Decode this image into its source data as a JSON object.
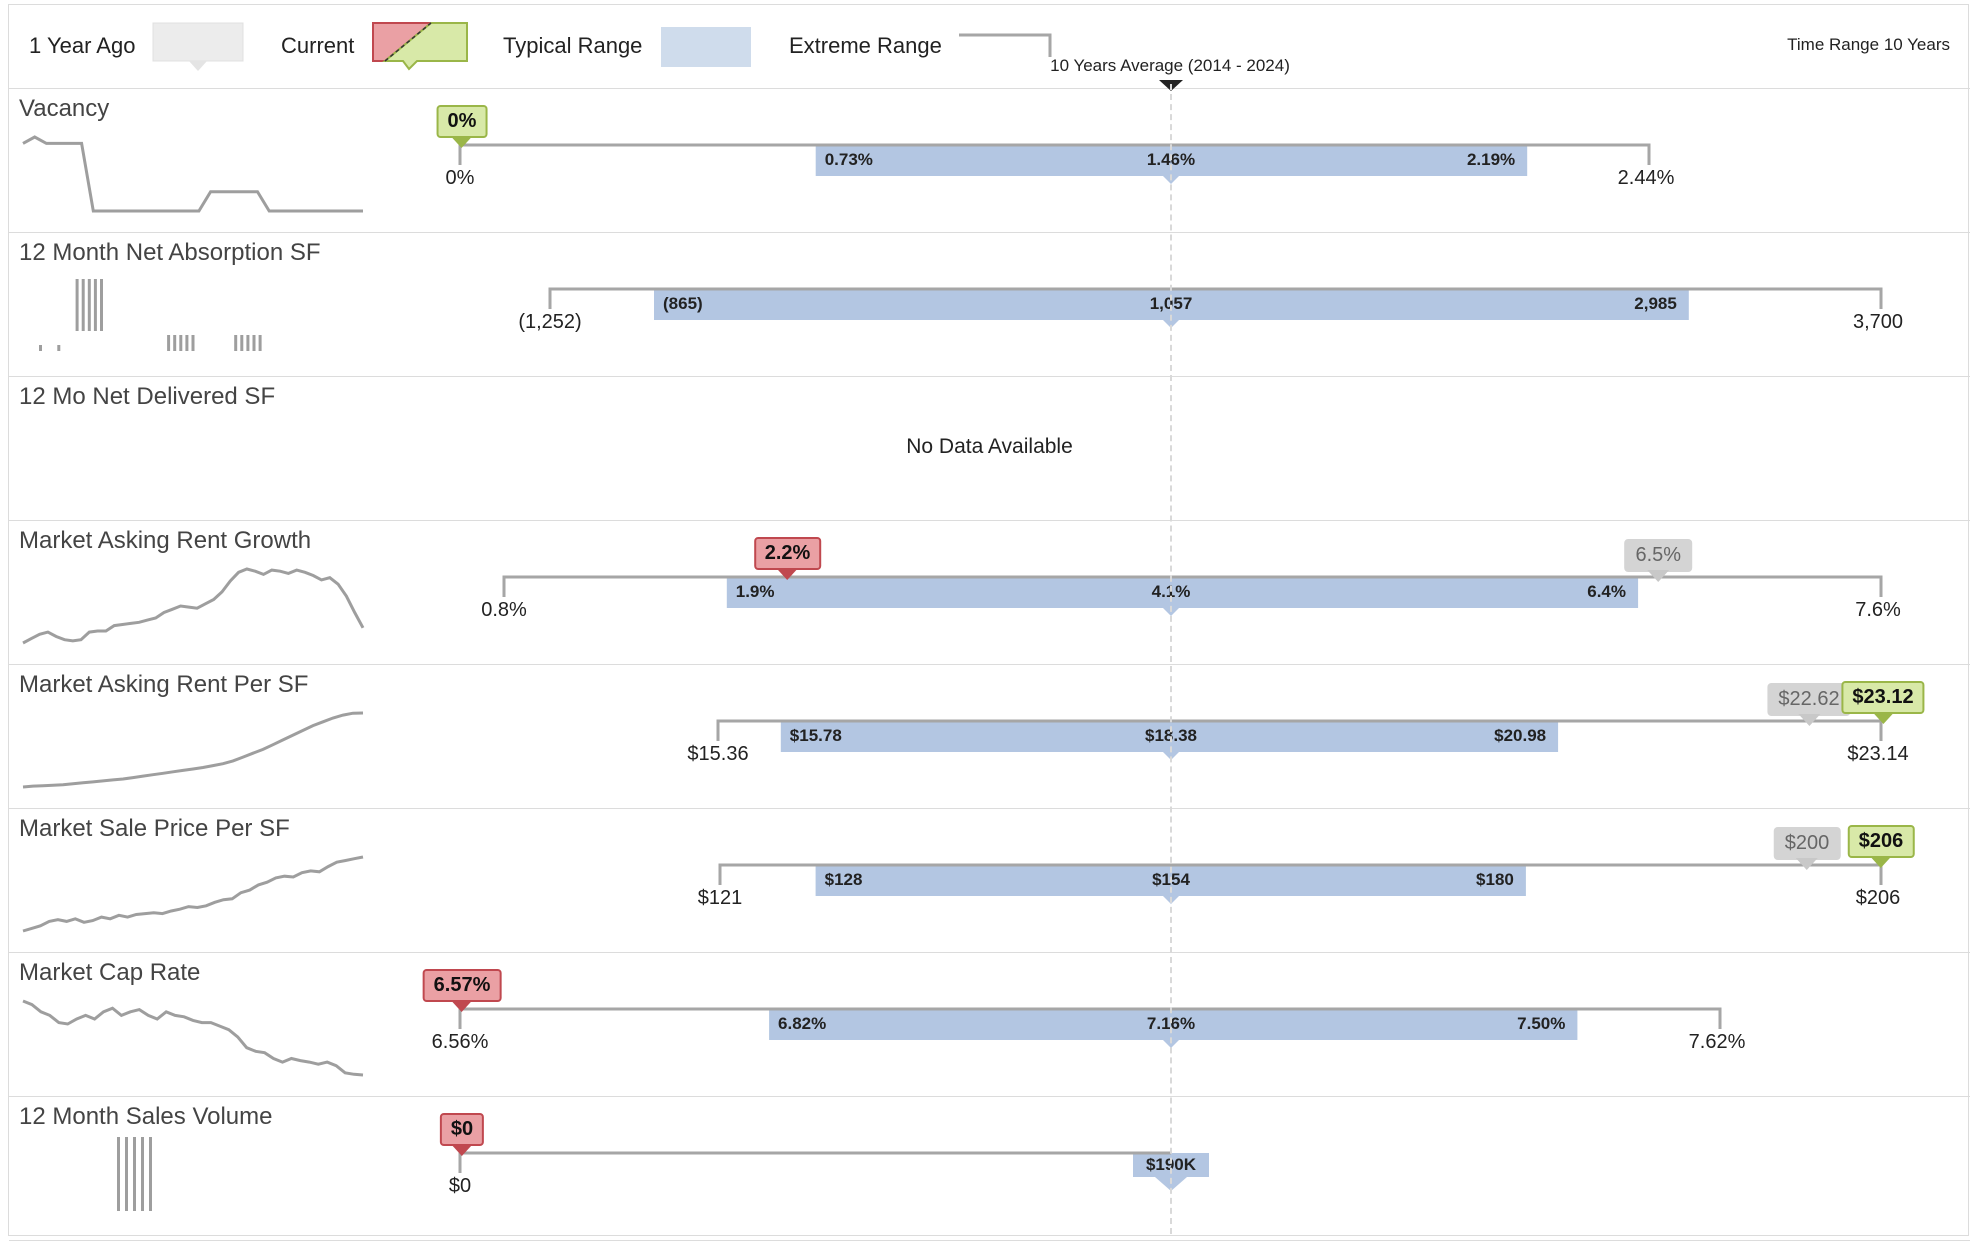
{
  "legend": {
    "one_year_ago": "1 Year Ago",
    "current": "Current",
    "typical_range": "Typical Range",
    "extreme_range": "Extreme Range",
    "time_range": "Time Range 10 Years",
    "average_label": "10 Years Average (2014 - 2024)"
  },
  "colors": {
    "typical_range": "#b3c6e2",
    "extreme_line": "#a6a6a6",
    "current_up": "#d8e9a8",
    "current_down": "#eaa0a4",
    "prior": "#d4d4d4",
    "sparkline": "#9e9e9e"
  },
  "chart_data": {
    "type": "range-bar",
    "rows": [
      {
        "title": "Vacancy",
        "extreme_min": "0%",
        "extreme_max": "2.44%",
        "typical_low": "0.73%",
        "average": "1.46%",
        "typical_high": "2.19%",
        "extreme": [
          0,
          2.44
        ],
        "typical": [
          0.73,
          2.19
        ],
        "avg": 1.46,
        "current": {
          "label": "0%",
          "value": 0,
          "trend": "up"
        },
        "prior": null,
        "spark_type": "line",
        "spark": [
          2.1,
          2.3,
          2.1,
          2.1,
          2.1,
          2.1,
          0,
          0,
          0,
          0,
          0,
          0,
          0,
          0,
          0,
          0,
          0.6,
          0.6,
          0.6,
          0.6,
          0.6,
          0,
          0,
          0,
          0,
          0,
          0,
          0,
          0,
          0
        ]
      },
      {
        "title": "12 Month Net Absorption SF",
        "extreme_min": "(1,252)",
        "extreme_max": "3,700",
        "typical_low": "(865)",
        "average": "1,057",
        "typical_high": "2,985",
        "extreme": [
          -1252,
          3700
        ],
        "typical": [
          -865,
          2985
        ],
        "avg": 1057,
        "current": null,
        "prior": null,
        "spark_type": "bars",
        "spark": [
          -300,
          0,
          0,
          -300,
          0,
          0,
          3500,
          3500,
          3500,
          3500,
          3500,
          0,
          0,
          0,
          0,
          0,
          0,
          0,
          0,
          0,
          0,
          -1000,
          -1000,
          -1000,
          -1000,
          -1000,
          0,
          0,
          0,
          0,
          0,
          0,
          -1000,
          -1000,
          -1000,
          -1000,
          -1000
        ]
      },
      {
        "title": "12 Mo Net Delivered SF",
        "no_data": "No Data Available"
      },
      {
        "title": "Market Asking Rent Growth",
        "extreme_min": "0.8%",
        "extreme_max": "7.6%",
        "typical_low": "1.9%",
        "average": "4.1%",
        "typical_high": "6.4%",
        "extreme": [
          0.8,
          7.6
        ],
        "typical": [
          1.9,
          6.4
        ],
        "avg": 4.1,
        "current": {
          "label": "2.2%",
          "value": 2.2,
          "trend": "down"
        },
        "prior": {
          "label": "6.5%",
          "value": 6.5
        },
        "spark_type": "line",
        "spark": [
          0.8,
          1.2,
          1.6,
          1.8,
          1.4,
          1.1,
          1.0,
          1.1,
          1.8,
          1.9,
          1.9,
          2.4,
          2.5,
          2.6,
          2.7,
          2.9,
          3.1,
          3.6,
          3.9,
          4.2,
          4.1,
          4.0,
          4.4,
          4.8,
          5.5,
          6.5,
          7.3,
          7.6,
          7.4,
          7.1,
          7.5,
          7.4,
          7.2,
          7.5,
          7.3,
          7.0,
          6.6,
          6.8,
          6.2,
          5.1,
          3.6,
          2.2
        ]
      },
      {
        "title": "Market Asking Rent Per SF",
        "extreme_min": "$15.36",
        "extreme_max": "$23.14",
        "typical_low": "$15.78",
        "average": "$18.38",
        "typical_high": "$20.98",
        "extreme": [
          15.36,
          23.14
        ],
        "typical": [
          15.78,
          20.98
        ],
        "avg": 18.38,
        "current": {
          "label": "$23.12",
          "value": 23.12,
          "trend": "up"
        },
        "prior": {
          "label": "$22.62",
          "value": 22.62
        },
        "spark_type": "line",
        "spark": [
          15.36,
          15.45,
          15.5,
          15.55,
          15.6,
          15.7,
          15.8,
          15.9,
          16.0,
          16.1,
          16.2,
          16.35,
          16.5,
          16.65,
          16.8,
          16.95,
          17.1,
          17.25,
          17.4,
          17.6,
          17.8,
          18.1,
          18.5,
          18.9,
          19.3,
          19.8,
          20.3,
          20.8,
          21.3,
          21.8,
          22.2,
          22.6,
          22.9,
          23.1,
          23.12
        ]
      },
      {
        "title": "Market Sale Price Per SF",
        "extreme_min": "$121",
        "extreme_max": "$206",
        "typical_low": "$128",
        "average": "$154",
        "typical_high": "$180",
        "extreme": [
          121,
          206
        ],
        "typical": [
          128,
          180
        ],
        "avg": 154,
        "current": {
          "label": "$206",
          "value": 206,
          "trend": "up"
        },
        "prior": {
          "label": "$200",
          "value": 200
        },
        "spark_type": "line",
        "spark": [
          121,
          124,
          127,
          132,
          134,
          132,
          135,
          131,
          133,
          137,
          135,
          139,
          137,
          140,
          141,
          142,
          141,
          144,
          146,
          149,
          148,
          150,
          154,
          157,
          158,
          165,
          168,
          174,
          177,
          182,
          184,
          183,
          188,
          190,
          189,
          195,
          200,
          202,
          204,
          206
        ]
      },
      {
        "title": "Market Cap Rate",
        "extreme_min": "6.56%",
        "extreme_max": "7.62%",
        "typical_low": "6.82%",
        "average": "7.16%",
        "typical_high": "7.50%",
        "extreme": [
          6.56,
          7.62
        ],
        "typical": [
          6.82,
          7.5
        ],
        "avg": 7.16,
        "current": {
          "label": "6.57%",
          "value": 6.57,
          "trend": "down"
        },
        "prior": null,
        "spark_type": "line",
        "spark": [
          7.6,
          7.55,
          7.45,
          7.4,
          7.3,
          7.28,
          7.35,
          7.4,
          7.35,
          7.45,
          7.5,
          7.4,
          7.45,
          7.48,
          7.4,
          7.35,
          7.45,
          7.4,
          7.38,
          7.33,
          7.3,
          7.3,
          7.25,
          7.2,
          7.1,
          6.95,
          6.9,
          6.88,
          6.8,
          6.75,
          6.8,
          6.77,
          6.75,
          6.72,
          6.75,
          6.7,
          6.6,
          6.58,
          6.57
        ]
      },
      {
        "title": "12 Month Sales Volume",
        "extreme_min": "$0",
        "extreme_max": "",
        "typical_low": "",
        "average": "$190K",
        "typical_high": "",
        "extreme": [
          0,
          1
        ],
        "typical": null,
        "avg": 1,
        "current": {
          "label": "$0",
          "value": 0,
          "trend": "down"
        },
        "prior": null,
        "spark_type": "bars",
        "spark": [
          1,
          0,
          1,
          0,
          1,
          0,
          1,
          0,
          1
        ]
      }
    ]
  }
}
